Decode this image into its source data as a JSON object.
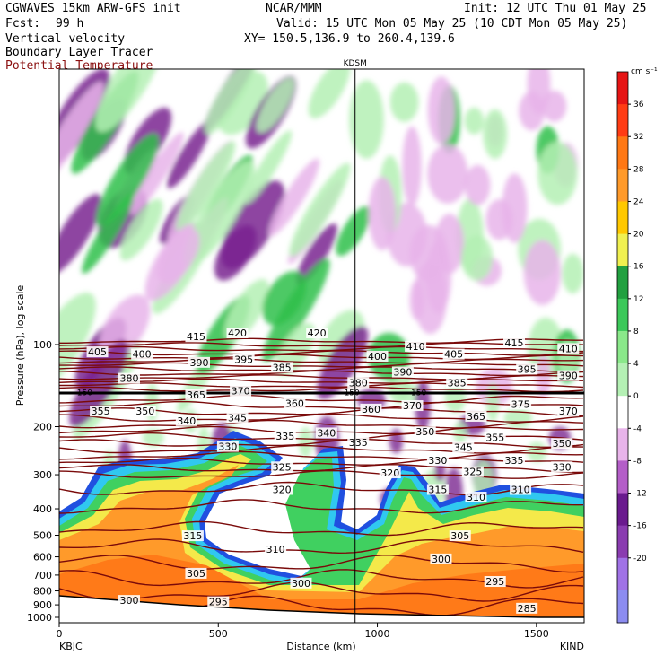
{
  "header": {
    "line1_left": "CGWAVES 15km ARW-GFS init",
    "line2_left_label": "Fcst:",
    "line2_left_value": "99 h",
    "line3_left": "Vertical velocity",
    "line4_left": "Boundary Layer Tracer",
    "line5_left": "Potential Temperature",
    "center_top": "NCAR/MMM",
    "init": "Init: 12 UTC Thu 01 May 25",
    "valid": "Valid: 15 UTC Mon 05 May 25 (10 CDT Mon 05 May 25)",
    "xy": "XY= 150.5,136.9 to 260.4,139.6",
    "station_marker": "KDSM",
    "left_station": "KBJC",
    "right_station": "KIND"
  },
  "colors": {
    "theta_line": "#7a0a0a",
    "tropopause": "#000000",
    "vv_purple_dark": "#7a2590",
    "vv_purple_light": "#e8b4ea",
    "vv_green_light": "#b4f0b4",
    "vv_green_dark": "#2fc04a",
    "tracer_orange": "#ff9a2a",
    "tracer_yellow": "#f4e94a",
    "tracer_blue": "#2050e0"
  },
  "chart_data": {
    "type": "cross-section",
    "xlabel": "Distance (km)",
    "ylabel": "Pressure (hPa), log scale",
    "x_ticks": [
      "0",
      "500",
      "1000",
      "1500"
    ],
    "x_tick_values": [
      0,
      500,
      1000,
      1500
    ],
    "xlim": [
      0,
      1650
    ],
    "y_ticks": [
      "100",
      "200",
      "300",
      "400",
      "500",
      "600",
      "700",
      "800",
      "900",
      "1000"
    ],
    "y_tick_values": [
      100,
      200,
      300,
      400,
      500,
      600,
      700,
      800,
      900,
      1000
    ],
    "y_scale": "log",
    "station_marker_x_km": 930,
    "tropopause_pressure": 150,
    "tropopause_labels": [
      "150",
      "150",
      "150"
    ],
    "colorbar": {
      "unit": "cm s⁻¹",
      "levels": [
        -20,
        -16,
        -12,
        -8,
        -4,
        0,
        4,
        8,
        12,
        16,
        20,
        24,
        28,
        32,
        36
      ],
      "level_labels": [
        "-20",
        "-16",
        "-12",
        "-8",
        "-4",
        "0",
        "4",
        "8",
        "12",
        "16",
        "20",
        "24",
        "28",
        "32",
        "36"
      ],
      "colors": [
        "#8c8cf0",
        "#a072e6",
        "#8a3cb0",
        "#6a1a8e",
        "#b45ec8",
        "#e8b4ea",
        "#ffffff",
        "#b4f0b4",
        "#8ae88a",
        "#3cc85a",
        "#22a040",
        "#f0f050",
        "#ffc800",
        "#ff9a2a",
        "#ff7814",
        "#ff3c14",
        "#e61414"
      ]
    },
    "theta_labels": [
      {
        "text": "415",
        "x_km": 430,
        "p": 95
      },
      {
        "text": "420",
        "x_km": 560,
        "p": 92
      },
      {
        "text": "420",
        "x_km": 810,
        "p": 92
      },
      {
        "text": "405",
        "x_km": 120,
        "p": 108
      },
      {
        "text": "400",
        "x_km": 260,
        "p": 110
      },
      {
        "text": "390",
        "x_km": 440,
        "p": 118
      },
      {
        "text": "395",
        "x_km": 580,
        "p": 115
      },
      {
        "text": "385",
        "x_km": 700,
        "p": 123
      },
      {
        "text": "400",
        "x_km": 1000,
        "p": 112
      },
      {
        "text": "410",
        "x_km": 1120,
        "p": 103
      },
      {
        "text": "405",
        "x_km": 1240,
        "p": 110
      },
      {
        "text": "415",
        "x_km": 1430,
        "p": 100
      },
      {
        "text": "410",
        "x_km": 1600,
        "p": 105
      },
      {
        "text": "380",
        "x_km": 220,
        "p": 135
      },
      {
        "text": "395",
        "x_km": 1470,
        "p": 125
      },
      {
        "text": "390",
        "x_km": 1600,
        "p": 132
      },
      {
        "text": "390",
        "x_km": 1080,
        "p": 128
      },
      {
        "text": "385",
        "x_km": 1250,
        "p": 140
      },
      {
        "text": "380",
        "x_km": 940,
        "p": 140
      },
      {
        "text": "365",
        "x_km": 430,
        "p": 155
      },
      {
        "text": "370",
        "x_km": 570,
        "p": 150
      },
      {
        "text": "360",
        "x_km": 740,
        "p": 167
      },
      {
        "text": "355",
        "x_km": 130,
        "p": 178
      },
      {
        "text": "350",
        "x_km": 270,
        "p": 178
      },
      {
        "text": "340",
        "x_km": 400,
        "p": 193
      },
      {
        "text": "345",
        "x_km": 560,
        "p": 188
      },
      {
        "text": "360",
        "x_km": 980,
        "p": 175
      },
      {
        "text": "370",
        "x_km": 1110,
        "p": 170
      },
      {
        "text": "375",
        "x_km": 1450,
        "p": 168
      },
      {
        "text": "370",
        "x_km": 1600,
        "p": 178
      },
      {
        "text": "365",
        "x_km": 1310,
        "p": 186
      },
      {
        "text": "335",
        "x_km": 710,
        "p": 220
      },
      {
        "text": "340",
        "x_km": 840,
        "p": 214
      },
      {
        "text": "335",
        "x_km": 940,
        "p": 232
      },
      {
        "text": "350",
        "x_km": 1150,
        "p": 212
      },
      {
        "text": "355",
        "x_km": 1370,
        "p": 222
      },
      {
        "text": "350",
        "x_km": 1580,
        "p": 234
      },
      {
        "text": "330",
        "x_km": 530,
        "p": 240
      },
      {
        "text": "345",
        "x_km": 1270,
        "p": 242
      },
      {
        "text": "330",
        "x_km": 1190,
        "p": 270
      },
      {
        "text": "335",
        "x_km": 1430,
        "p": 270
      },
      {
        "text": "330",
        "x_km": 1580,
        "p": 285
      },
      {
        "text": "325",
        "x_km": 700,
        "p": 285
      },
      {
        "text": "320",
        "x_km": 1040,
        "p": 300
      },
      {
        "text": "325",
        "x_km": 1300,
        "p": 297
      },
      {
        "text": "320",
        "x_km": 700,
        "p": 345
      },
      {
        "text": "315",
        "x_km": 1190,
        "p": 345
      },
      {
        "text": "310",
        "x_km": 1310,
        "p": 368
      },
      {
        "text": "310",
        "x_km": 1450,
        "p": 345
      },
      {
        "text": "315",
        "x_km": 420,
        "p": 510
      },
      {
        "text": "305",
        "x_km": 1260,
        "p": 510
      },
      {
        "text": "310",
        "x_km": 680,
        "p": 570
      },
      {
        "text": "300",
        "x_km": 1200,
        "p": 620
      },
      {
        "text": "305",
        "x_km": 430,
        "p": 700
      },
      {
        "text": "300",
        "x_km": 760,
        "p": 760
      },
      {
        "text": "295",
        "x_km": 1370,
        "p": 750
      },
      {
        "text": "300",
        "x_km": 220,
        "p": 880
      },
      {
        "text": "295",
        "x_km": 500,
        "p": 890
      },
      {
        "text": "285",
        "x_km": 1470,
        "p": 940
      }
    ]
  }
}
